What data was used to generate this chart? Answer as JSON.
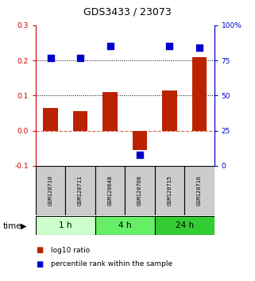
{
  "title": "GDS3433 / 23073",
  "samples": [
    "GSM120710",
    "GSM120711",
    "GSM120648",
    "GSM120708",
    "GSM120715",
    "GSM120716"
  ],
  "log10_ratio": [
    0.065,
    0.055,
    0.11,
    -0.055,
    0.115,
    0.21
  ],
  "percentile_rank": [
    77,
    77,
    85,
    8,
    85,
    84
  ],
  "left_ylim": [
    -0.1,
    0.3
  ],
  "right_ylim": [
    0,
    100
  ],
  "left_yticks": [
    -0.1,
    0.0,
    0.1,
    0.2,
    0.3
  ],
  "right_yticks": [
    0,
    25,
    50,
    75,
    100
  ],
  "bar_color": "#bb2200",
  "dot_color": "#0000cc",
  "bar_width": 0.5,
  "dot_size": 30,
  "time_groups": [
    {
      "label": "1 h",
      "start": 0,
      "end": 2,
      "color": "#ccffcc"
    },
    {
      "label": "4 h",
      "start": 2,
      "end": 4,
      "color": "#66ee66"
    },
    {
      "label": "24 h",
      "start": 4,
      "end": 6,
      "color": "#33cc33"
    }
  ],
  "left_axis_color": "#cc0000",
  "right_axis_color": "#0000cc",
  "sample_box_color": "#cccccc",
  "bg_color": "#ffffff"
}
